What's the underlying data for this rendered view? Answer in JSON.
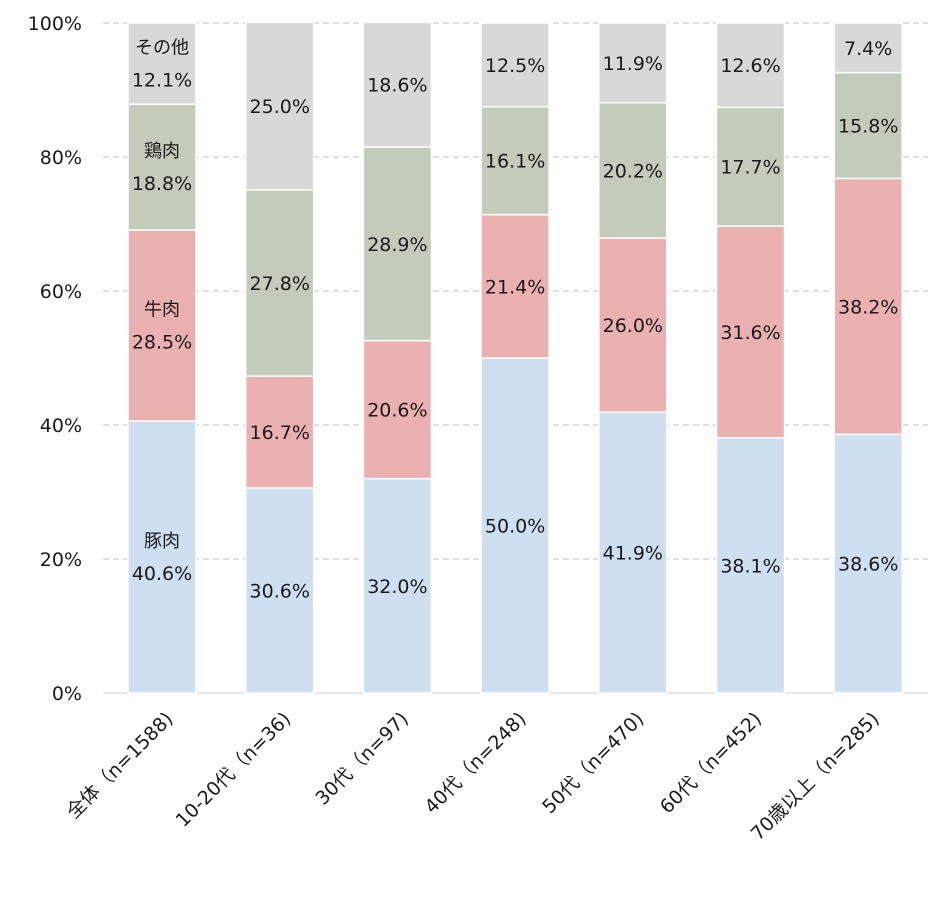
{
  "chart_data": {
    "type": "bar",
    "stacked": true,
    "categories": [
      "全体（n=1588)",
      "10-20代（n=36)",
      "30代（n=97)",
      "40代（n=248)",
      "50代（n=470)",
      "60代（n=452)",
      "70歳以上（n=285)"
    ],
    "series": [
      {
        "name": "豚肉",
        "values": [
          40.6,
          30.6,
          32.0,
          50.0,
          41.9,
          38.1,
          38.6
        ],
        "labels": [
          "40.6%",
          "30.6%",
          "32.0%",
          "50.0%",
          "41.9%",
          "38.1%",
          "38.6%"
        ],
        "color": "#cddff0"
      },
      {
        "name": "牛肉",
        "values": [
          28.5,
          16.7,
          20.6,
          21.4,
          26.0,
          31.6,
          38.2
        ],
        "labels": [
          "28.5%",
          "16.7%",
          "20.6%",
          "21.4%",
          "26.0%",
          "31.6%",
          "38.2%"
        ],
        "color": "#ebb1b0"
      },
      {
        "name": "鶏肉",
        "values": [
          18.8,
          27.8,
          28.9,
          16.1,
          20.2,
          17.7,
          15.8
        ],
        "labels": [
          "18.8%",
          "27.8%",
          "28.9%",
          "16.1%",
          "20.2%",
          "17.7%",
          "15.8%"
        ],
        "color": "#c3ccba"
      },
      {
        "name": "その他",
        "values": [
          12.1,
          25.0,
          18.6,
          12.5,
          11.9,
          12.6,
          7.4
        ],
        "labels": [
          "12.1%",
          "25.0%",
          "18.6%",
          "12.5%",
          "11.9%",
          "12.6%",
          "7.4%"
        ],
        "color": "#d8d8d8"
      }
    ],
    "series_names_shown_in_first_bar": true,
    "yticks": [
      "0%",
      "20%",
      "40%",
      "60%",
      "80%",
      "100%"
    ],
    "ytick_values": [
      0,
      20,
      40,
      60,
      80,
      100
    ],
    "ylim": [
      0,
      100
    ],
    "grid": "horizontal-dashed",
    "legend": "none",
    "title": "",
    "xlabel": "",
    "ylabel": ""
  }
}
